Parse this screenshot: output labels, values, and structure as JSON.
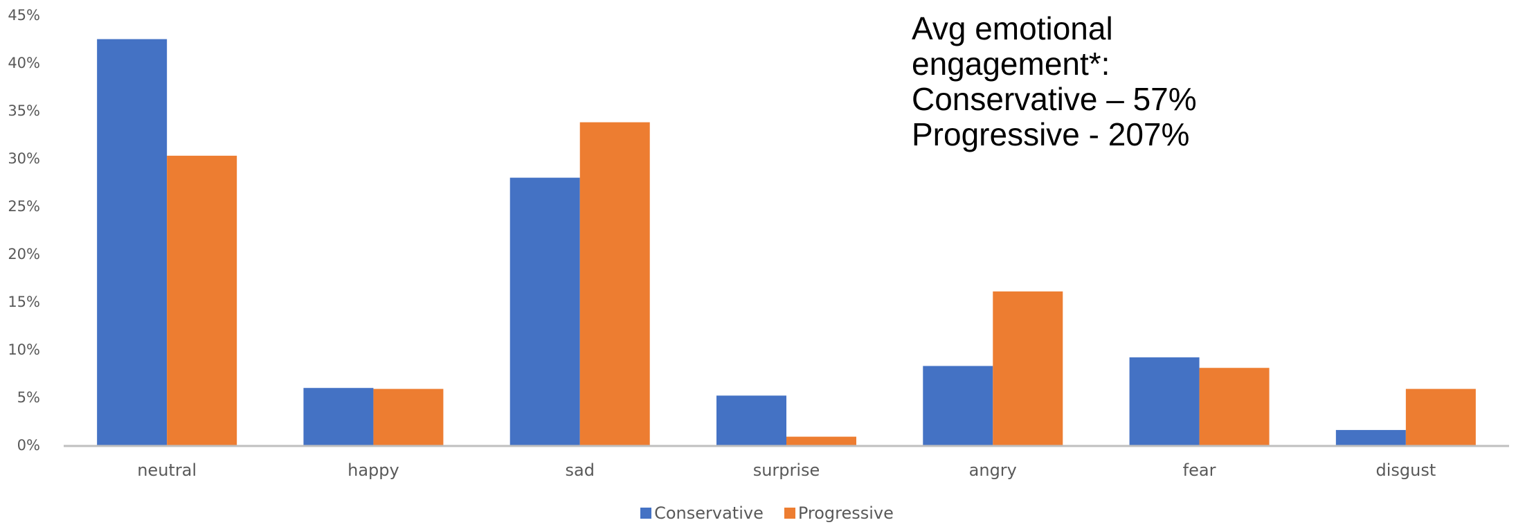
{
  "chart_data": {
    "type": "bar",
    "categories": [
      "neutral",
      "happy",
      "sad",
      "surprise",
      "angry",
      "fear",
      "disgust"
    ],
    "series": [
      {
        "name": "Conservative",
        "color": "#4472C4",
        "values": [
          42.5,
          6.0,
          28.0,
          5.2,
          8.3,
          9.2,
          1.6
        ]
      },
      {
        "name": "Progressive",
        "color": "#ED7D31",
        "values": [
          30.3,
          5.9,
          33.8,
          0.9,
          16.1,
          8.1,
          5.9
        ]
      }
    ],
    "ylim": [
      0,
      45
    ],
    "yticks": [
      0,
      5,
      10,
      15,
      20,
      25,
      30,
      35,
      40,
      45
    ],
    "ytick_labels": [
      "0%",
      "5%",
      "10%",
      "15%",
      "20%",
      "25%",
      "30%",
      "35%",
      "40%",
      "45%"
    ],
    "grid": false,
    "legend_position": "bottom",
    "annotation_lines": [
      "Avg emotional",
      "engagement*:",
      "",
      "Conservative – 57%",
      "Progressive - 207%"
    ]
  }
}
